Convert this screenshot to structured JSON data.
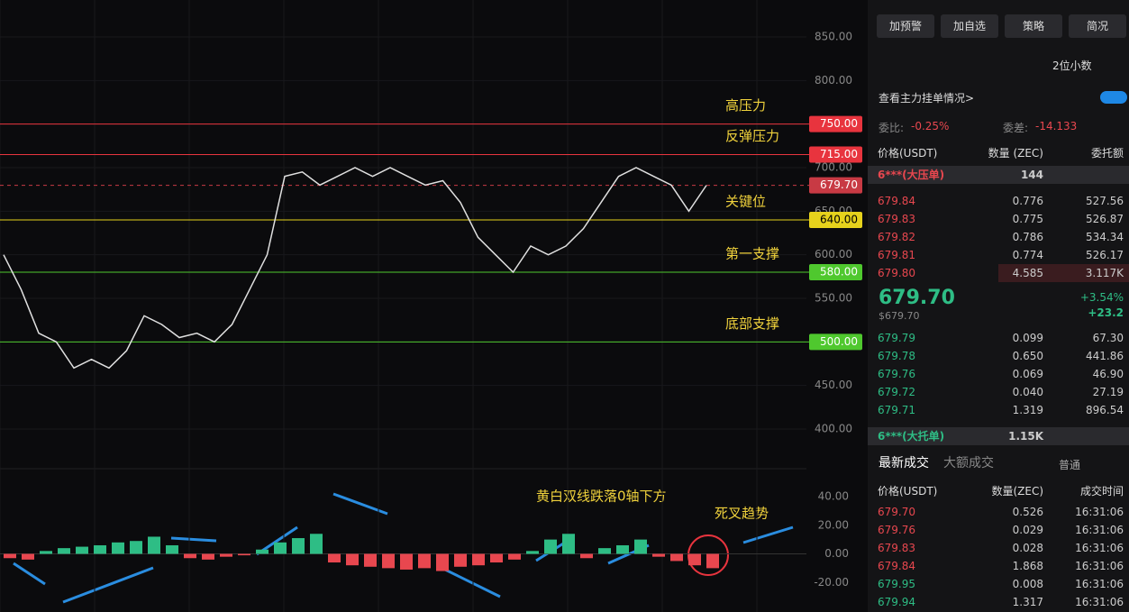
{
  "chart": {
    "close": [
      600,
      560,
      510,
      500,
      470,
      480,
      470,
      490,
      530,
      520,
      505,
      510,
      500,
      520,
      560,
      600,
      690,
      695,
      680,
      690,
      700,
      690,
      700,
      690,
      680,
      685,
      660,
      620,
      600,
      580,
      610,
      600,
      610,
      630,
      660,
      690,
      700,
      690,
      680,
      650,
      679.7
    ],
    "price_ylim": [
      400,
      850
    ],
    "price_ticks": [
      {
        "value": 850,
        "label": "850.00"
      },
      {
        "value": 800,
        "label": "800.00"
      },
      {
        "value": 750,
        "label": "750.00"
      },
      {
        "value": 700,
        "label": "700.00"
      },
      {
        "value": 650,
        "label": "650.00"
      },
      {
        "value": 600,
        "label": "600.00"
      },
      {
        "value": 550,
        "label": "550.00"
      },
      {
        "value": 500,
        "label": "500.00"
      },
      {
        "value": 450,
        "label": "450.00"
      },
      {
        "value": 400,
        "label": "400.00"
      }
    ],
    "levels": [
      {
        "value": 750,
        "label": "750.00",
        "color": "#e8343e",
        "text": "高压力"
      },
      {
        "value": 715,
        "label": "715.00",
        "color": "#e8343e",
        "text": "反弹压力"
      },
      {
        "value": 679.7,
        "label": "679.70",
        "color": "#c83a44",
        "dashed": true
      },
      {
        "value": 640,
        "label": "640.00",
        "color": "#e6d21c",
        "text": "关键位"
      },
      {
        "value": 580,
        "label": "580.00",
        "color": "#4fc82e",
        "text": "第一支撑"
      },
      {
        "value": 500,
        "label": "500.00",
        "color": "#4fc82e",
        "text": "底部支撑"
      }
    ],
    "macd": [
      -3,
      -4,
      2,
      4,
      5,
      6,
      8,
      9,
      12,
      6,
      -3,
      -4,
      -2,
      -1,
      3,
      8,
      11,
      14,
      -6,
      -8,
      -9,
      -10,
      -11,
      -10,
      -12,
      -9,
      -8,
      -6,
      -4,
      2,
      10,
      14,
      -3,
      4,
      6,
      10,
      -2,
      -5,
      -8,
      -10
    ],
    "macd_ylim": [
      -30,
      50
    ],
    "macd_ticks": [
      {
        "value": 40,
        "label": "40.00"
      },
      {
        "value": 20,
        "label": "20.00"
      },
      {
        "value": 0,
        "label": "0.00"
      },
      {
        "value": -20,
        "label": "-20.00"
      }
    ],
    "note_macd": "黄白双线跌落0轴下方",
    "note_cross": "死叉趋势"
  },
  "panel": {
    "buttons": [
      "加预警",
      "加自选",
      "策略",
      "简况"
    ],
    "decimals": "2位小数",
    "main_orders": "查看主力挂单情况>",
    "ratio_label": "委比:",
    "ratio": "-0.25%",
    "diff_label": "委差:",
    "diff": "-14.133",
    "book_header": [
      "价格(USDT)",
      "数量 (ZEC)",
      "委托额"
    ],
    "big_ask": [
      "6***(大压单)",
      "144"
    ],
    "asks": [
      [
        "679.84",
        "0.776",
        "527.56"
      ],
      [
        "679.83",
        "0.775",
        "526.87"
      ],
      [
        "679.82",
        "0.786",
        "534.34"
      ],
      [
        "679.81",
        "0.774",
        "526.17"
      ],
      [
        "679.80",
        "4.585",
        "3.117K"
      ]
    ],
    "last": "679.70",
    "last_usd": "$679.70",
    "change_pct": "+3.54%",
    "change": "+23.2",
    "bids": [
      [
        "679.79",
        "0.099",
        "67.30"
      ],
      [
        "679.78",
        "0.650",
        "441.86"
      ],
      [
        "679.76",
        "0.069",
        "46.90"
      ],
      [
        "679.72",
        "0.040",
        "27.19"
      ],
      [
        "679.71",
        "1.319",
        "896.54"
      ]
    ],
    "big_bid": [
      "6***(大托单)",
      "1.15K"
    ],
    "tabs": [
      "最新成交",
      "大额成交"
    ],
    "normal": "普通",
    "trade_header": [
      "价格(USDT)",
      "数量(ZEC)",
      "成交时间"
    ],
    "trades": [
      [
        "679.70",
        "0.526",
        "16:31:06",
        "sell"
      ],
      [
        "679.76",
        "0.029",
        "16:31:06",
        "sell"
      ],
      [
        "679.83",
        "0.028",
        "16:31:06",
        "sell"
      ],
      [
        "679.84",
        "1.868",
        "16:31:06",
        "sell"
      ],
      [
        "679.95",
        "0.008",
        "16:31:06",
        "buy"
      ],
      [
        "679.94",
        "1.317",
        "16:31:06",
        "buy"
      ]
    ]
  }
}
